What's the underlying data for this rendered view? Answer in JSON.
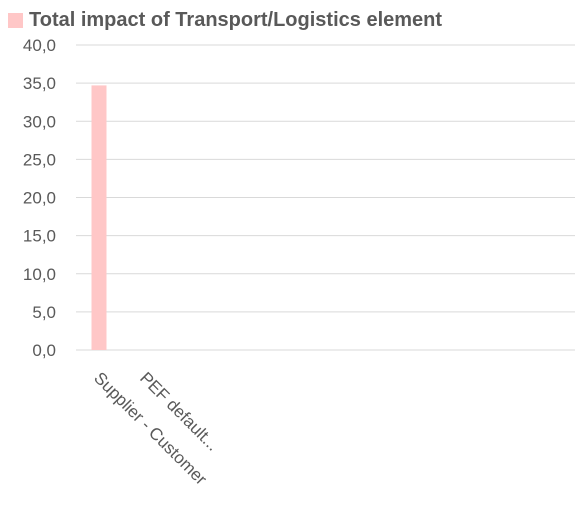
{
  "chart_data": {
    "type": "bar",
    "categories": [
      "Supplier - Customer",
      "PEF default..."
    ],
    "series": [
      {
        "name": "Total impact of Transport/Logistics element",
        "values": [
          34.7,
          0
        ],
        "color": "#FFC7C7"
      }
    ],
    "yticks": [
      "0,0",
      "5,0",
      "10,0",
      "15,0",
      "20,0",
      "25,0",
      "30,0",
      "35,0",
      "40,0"
    ],
    "ylim": [
      0,
      40
    ],
    "ytick_step": 5,
    "grid": true,
    "legend_position": "top-left",
    "gridline_color": "#D9D9D9",
    "text_color": "#595959"
  }
}
